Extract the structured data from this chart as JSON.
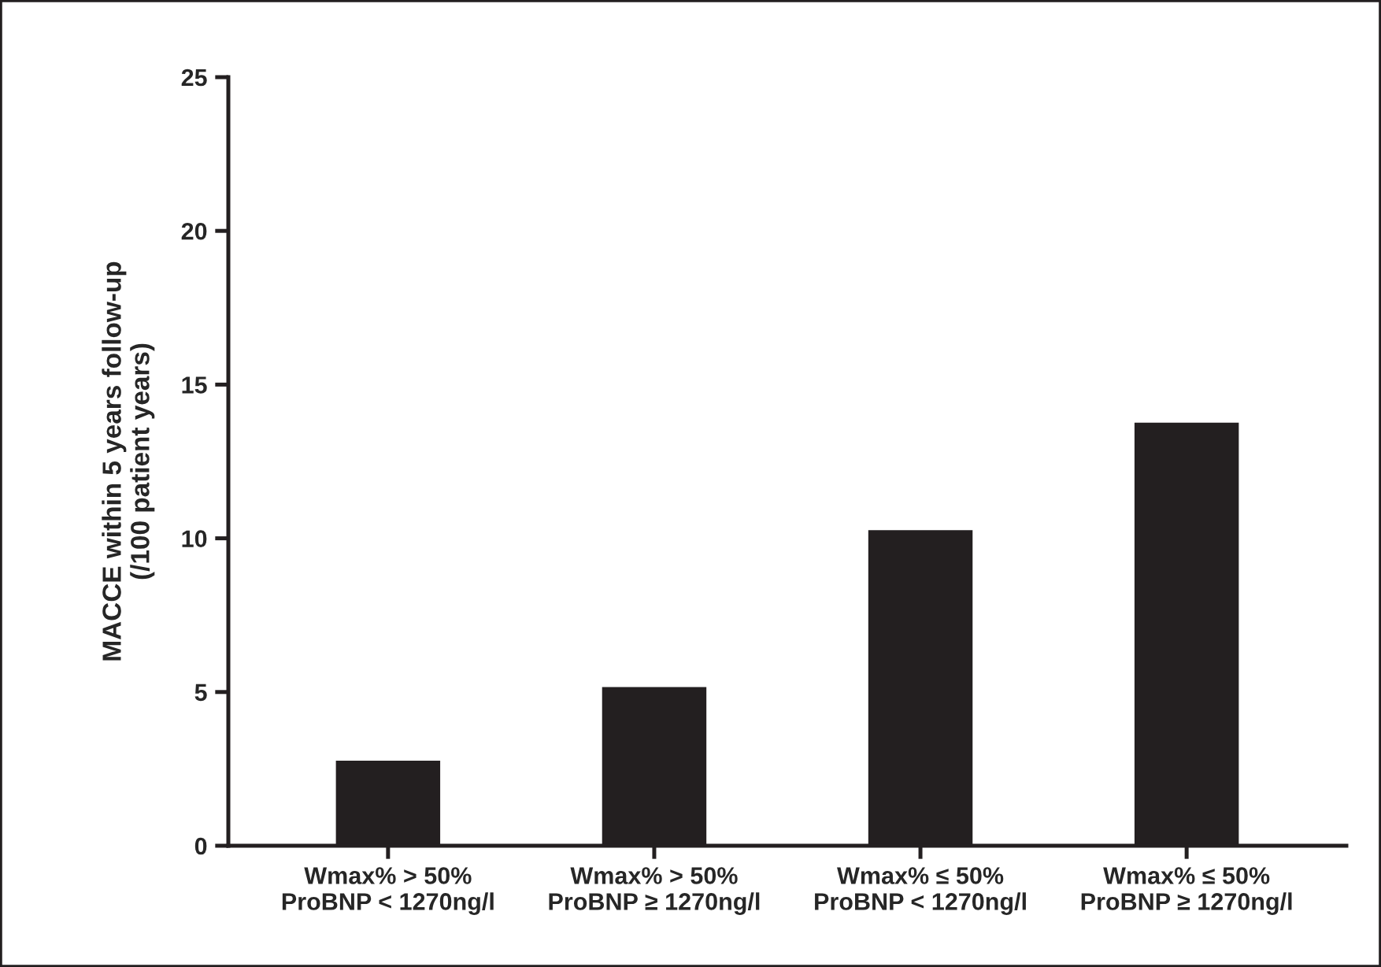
{
  "chart_data": {
    "type": "bar",
    "ylabel": "MACCE within 5 years follow-up\n(/100 patient years)",
    "categories": [
      "Wmax% > 50%\nProBNP < 1270ng/l",
      "Wmax% > 50%\nProBNP ≥ 1270ng/l",
      "Wmax% ≤ 50%\nProBNP < 1270ng/l",
      "Wmax% ≤ 50%\nProBNP ≥ 1270ng/l"
    ],
    "values": [
      2.8,
      5.2,
      10.3,
      13.8
    ],
    "color": "#231f20",
    "ylim": [
      0,
      25
    ],
    "yticks": [
      0,
      5,
      10,
      15,
      20,
      25
    ],
    "grid": false
  }
}
